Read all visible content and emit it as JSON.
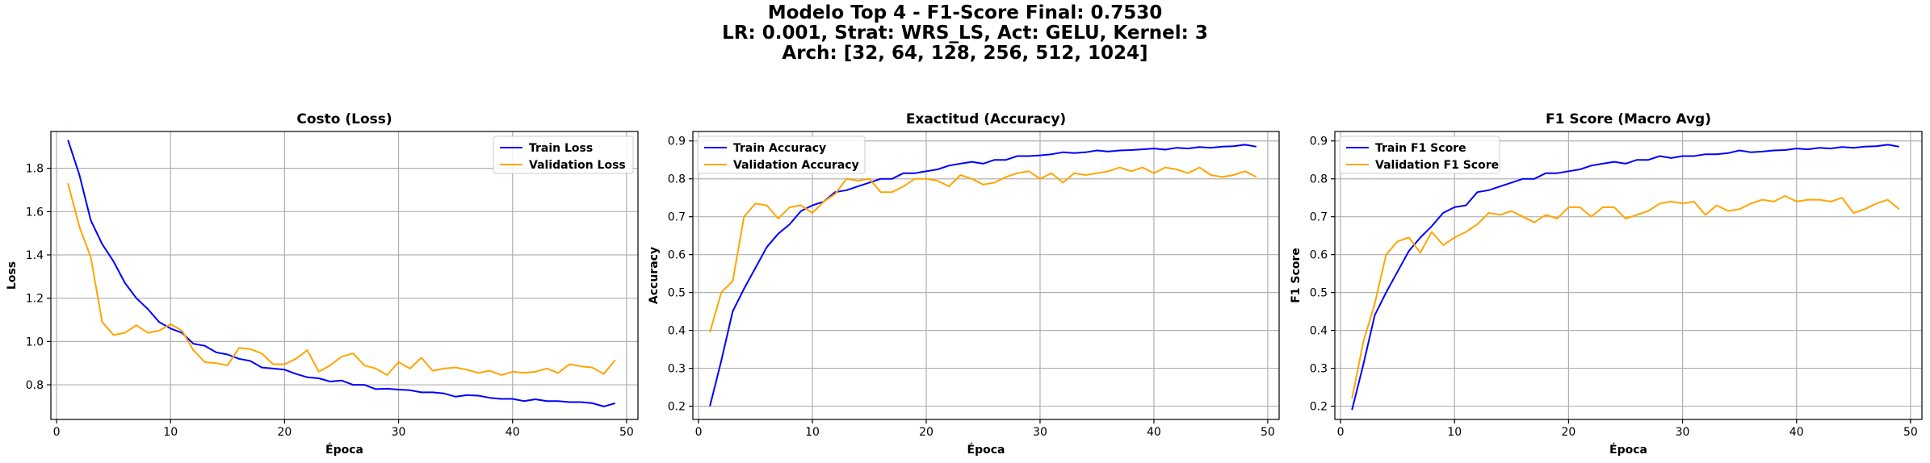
{
  "suptitle": {
    "line1": "Modelo Top 4 - F1-Score Final: 0.7530",
    "line2": "LR: 0.001, Strat: WRS_LS, Act: GELU, Kernel: 3",
    "line3": "Arch: [32, 64, 128, 256, 512, 1024]"
  },
  "colors": {
    "train": "#0000ff",
    "validation": "#ffa500",
    "grid": "#b0b0b0"
  },
  "chart_data": [
    {
      "type": "line",
      "title": "Costo (Loss)",
      "xlabel": "Época",
      "ylabel": "Loss",
      "xlim": [
        -0.5,
        51
      ],
      "ylim": [
        0.64,
        1.97
      ],
      "xticks": [
        0,
        10,
        20,
        30,
        40,
        50
      ],
      "yticks": [
        0.8,
        1.0,
        1.2,
        1.4,
        1.6,
        1.8
      ],
      "ytick_labels": [
        "0.8",
        "1.0",
        "1.2",
        "1.4",
        "1.6",
        "1.8"
      ],
      "grid": true,
      "legend": "upper right",
      "x": [
        1,
        2,
        3,
        4,
        5,
        6,
        7,
        8,
        9,
        10,
        11,
        12,
        13,
        14,
        15,
        16,
        17,
        18,
        19,
        20,
        21,
        22,
        23,
        24,
        25,
        26,
        27,
        28,
        29,
        30,
        31,
        32,
        33,
        34,
        35,
        36,
        37,
        38,
        39,
        40,
        41,
        42,
        43,
        44,
        45,
        46,
        47,
        48,
        49
      ],
      "series": [
        {
          "name": "Train Loss",
          "color": "#0000ff",
          "values": [
            1.93,
            1.77,
            1.56,
            1.45,
            1.37,
            1.27,
            1.2,
            1.15,
            1.09,
            1.06,
            1.04,
            0.99,
            0.98,
            0.95,
            0.94,
            0.92,
            0.91,
            0.88,
            0.875,
            0.87,
            0.85,
            0.835,
            0.83,
            0.815,
            0.82,
            0.8,
            0.8,
            0.78,
            0.782,
            0.778,
            0.775,
            0.765,
            0.765,
            0.76,
            0.745,
            0.752,
            0.75,
            0.74,
            0.735,
            0.735,
            0.725,
            0.733,
            0.725,
            0.725,
            0.72,
            0.72,
            0.715,
            0.7,
            0.715
          ]
        },
        {
          "name": "Validation Loss",
          "color": "#ffa500",
          "values": [
            1.73,
            1.53,
            1.39,
            1.09,
            1.03,
            1.04,
            1.075,
            1.04,
            1.05,
            1.08,
            1.05,
            0.96,
            0.905,
            0.9,
            0.89,
            0.97,
            0.965,
            0.945,
            0.895,
            0.895,
            0.92,
            0.96,
            0.86,
            0.89,
            0.93,
            0.945,
            0.89,
            0.875,
            0.845,
            0.905,
            0.875,
            0.925,
            0.865,
            0.875,
            0.88,
            0.87,
            0.855,
            0.865,
            0.845,
            0.86,
            0.855,
            0.86,
            0.875,
            0.855,
            0.895,
            0.885,
            0.88,
            0.85,
            0.915
          ]
        }
      ]
    },
    {
      "type": "line",
      "title": "Exactitud (Accuracy)",
      "xlabel": "Época",
      "ylabel": "Accuracy",
      "xlim": [
        -0.5,
        51
      ],
      "ylim": [
        0.165,
        0.925
      ],
      "xticks": [
        0,
        10,
        20,
        30,
        40,
        50
      ],
      "yticks": [
        0.2,
        0.3,
        0.4,
        0.5,
        0.6,
        0.7,
        0.8,
        0.9
      ],
      "ytick_labels": [
        "0.2",
        "0.3",
        "0.4",
        "0.5",
        "0.6",
        "0.7",
        "0.8",
        "0.9"
      ],
      "grid": true,
      "legend": "upper left",
      "x": [
        1,
        2,
        3,
        4,
        5,
        6,
        7,
        8,
        9,
        10,
        11,
        12,
        13,
        14,
        15,
        16,
        17,
        18,
        19,
        20,
        21,
        22,
        23,
        24,
        25,
        26,
        27,
        28,
        29,
        30,
        31,
        32,
        33,
        34,
        35,
        36,
        37,
        38,
        39,
        40,
        41,
        42,
        43,
        44,
        45,
        46,
        47,
        48,
        49
      ],
      "series": [
        {
          "name": "Train Accuracy",
          "color": "#0000ff",
          "values": [
            0.2,
            0.32,
            0.45,
            0.51,
            0.565,
            0.62,
            0.655,
            0.68,
            0.715,
            0.73,
            0.74,
            0.765,
            0.77,
            0.78,
            0.79,
            0.8,
            0.8,
            0.815,
            0.815,
            0.82,
            0.825,
            0.835,
            0.84,
            0.845,
            0.84,
            0.85,
            0.85,
            0.86,
            0.86,
            0.862,
            0.865,
            0.87,
            0.868,
            0.87,
            0.875,
            0.872,
            0.875,
            0.876,
            0.878,
            0.88,
            0.877,
            0.882,
            0.88,
            0.884,
            0.882,
            0.885,
            0.886,
            0.89,
            0.885
          ]
        },
        {
          "name": "Validation Accuracy",
          "color": "#ffa500",
          "values": [
            0.395,
            0.5,
            0.53,
            0.7,
            0.735,
            0.73,
            0.695,
            0.725,
            0.73,
            0.71,
            0.74,
            0.76,
            0.8,
            0.795,
            0.8,
            0.765,
            0.765,
            0.78,
            0.8,
            0.8,
            0.795,
            0.78,
            0.81,
            0.8,
            0.785,
            0.79,
            0.805,
            0.815,
            0.82,
            0.8,
            0.815,
            0.79,
            0.815,
            0.81,
            0.815,
            0.82,
            0.83,
            0.82,
            0.83,
            0.815,
            0.83,
            0.825,
            0.815,
            0.83,
            0.81,
            0.805,
            0.81,
            0.82,
            0.805
          ]
        }
      ]
    },
    {
      "type": "line",
      "title": "F1 Score (Macro Avg)",
      "xlabel": "Época",
      "ylabel": "F1 Score",
      "xlim": [
        -0.5,
        51
      ],
      "ylim": [
        0.165,
        0.925
      ],
      "xticks": [
        0,
        10,
        20,
        30,
        40,
        50
      ],
      "yticks": [
        0.2,
        0.3,
        0.4,
        0.5,
        0.6,
        0.7,
        0.8,
        0.9
      ],
      "ytick_labels": [
        "0.2",
        "0.3",
        "0.4",
        "0.5",
        "0.6",
        "0.7",
        "0.8",
        "0.9"
      ],
      "grid": true,
      "legend": "upper left",
      "x": [
        1,
        2,
        3,
        4,
        5,
        6,
        7,
        8,
        9,
        10,
        11,
        12,
        13,
        14,
        15,
        16,
        17,
        18,
        19,
        20,
        21,
        22,
        23,
        24,
        25,
        26,
        27,
        28,
        29,
        30,
        31,
        32,
        33,
        34,
        35,
        36,
        37,
        38,
        39,
        40,
        41,
        42,
        43,
        44,
        45,
        46,
        47,
        48,
        49
      ],
      "series": [
        {
          "name": "Train F1 Score",
          "color": "#0000ff",
          "values": [
            0.19,
            0.31,
            0.44,
            0.5,
            0.555,
            0.61,
            0.645,
            0.675,
            0.71,
            0.725,
            0.73,
            0.765,
            0.77,
            0.78,
            0.79,
            0.8,
            0.8,
            0.815,
            0.815,
            0.82,
            0.825,
            0.835,
            0.84,
            0.845,
            0.84,
            0.85,
            0.85,
            0.86,
            0.855,
            0.86,
            0.86,
            0.865,
            0.865,
            0.868,
            0.875,
            0.87,
            0.872,
            0.875,
            0.876,
            0.88,
            0.878,
            0.882,
            0.88,
            0.884,
            0.882,
            0.885,
            0.886,
            0.89,
            0.885
          ]
        },
        {
          "name": "Validation F1 Score",
          "color": "#ffa500",
          "values": [
            0.22,
            0.37,
            0.47,
            0.6,
            0.635,
            0.645,
            0.605,
            0.66,
            0.625,
            0.645,
            0.66,
            0.68,
            0.71,
            0.705,
            0.715,
            0.7,
            0.685,
            0.705,
            0.695,
            0.725,
            0.725,
            0.7,
            0.725,
            0.725,
            0.695,
            0.705,
            0.715,
            0.735,
            0.74,
            0.735,
            0.74,
            0.705,
            0.73,
            0.715,
            0.72,
            0.735,
            0.745,
            0.74,
            0.755,
            0.74,
            0.745,
            0.745,
            0.74,
            0.75,
            0.71,
            0.72,
            0.735,
            0.745,
            0.72
          ]
        }
      ]
    }
  ]
}
